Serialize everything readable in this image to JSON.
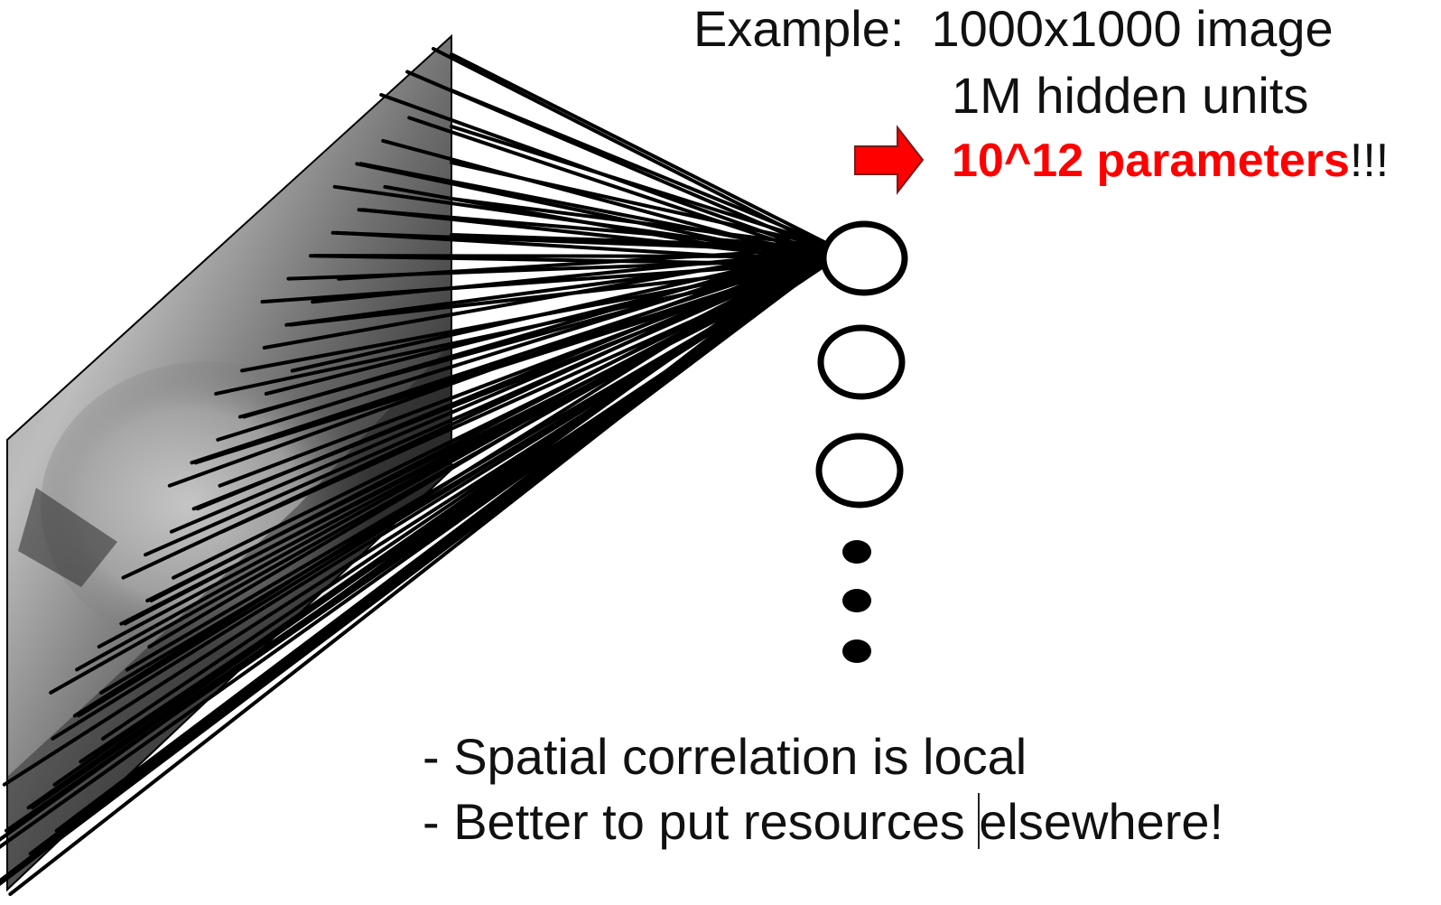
{
  "text": {
    "example_label": "Example:",
    "example_value": "1000x1000 image",
    "hidden_units": "1M hidden units",
    "parameters_strong": "10^12 parameters",
    "parameters_suffix": "!!!",
    "note_1": "- Spatial correlation is local",
    "note_2": "- Better to put resources elsewhere!"
  },
  "icons": {
    "arrow": "right-arrow-icon",
    "neuron": "circle-node-icon",
    "ellipsis": "vertical-ellipsis-icon"
  },
  "colors": {
    "background": "#ffffff",
    "text": "#111111",
    "highlight": "#ff0000",
    "lines": "#000000"
  },
  "diagram": {
    "hidden_units_drawn": 3,
    "continuation_dots": 3
  }
}
